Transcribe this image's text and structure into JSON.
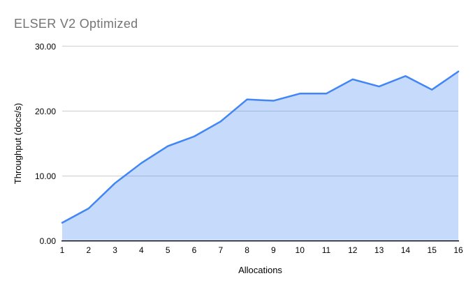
{
  "chart_data": {
    "type": "area",
    "title": "ELSER V2 Optimized",
    "xlabel": "Allocations",
    "ylabel": "Throughput (docs/s)",
    "categories": [
      1,
      2,
      3,
      4,
      5,
      6,
      7,
      8,
      9,
      10,
      11,
      12,
      13,
      14,
      15,
      16
    ],
    "x_tick_labels": [
      "1",
      "2",
      "3",
      "4",
      "5",
      "6",
      "7",
      "8",
      "9",
      "10",
      "11",
      "12",
      "13",
      "14",
      "15",
      "16"
    ],
    "values": [
      2.8,
      5.0,
      8.9,
      12.0,
      14.6,
      16.1,
      18.4,
      21.8,
      21.6,
      22.7,
      22.7,
      24.9,
      23.8,
      25.4,
      23.3,
      26.1
    ],
    "series_name": "Throughput (docs/s)",
    "ylim": [
      0,
      30
    ],
    "y_ticks": [
      0,
      10,
      20,
      30
    ],
    "y_tick_labels": [
      "0.00",
      "10.00",
      "20.00",
      "30.00"
    ],
    "grid": "horizontal",
    "legend": "none",
    "colors": {
      "line": "#4285f4",
      "fill": "rgba(66,133,244,0.30)",
      "gridline": "#cccccc",
      "axis_line": "#000000",
      "tick_label": "#000000",
      "axis_title": "#000000",
      "title": "#757575",
      "background": "#ffffff"
    }
  }
}
